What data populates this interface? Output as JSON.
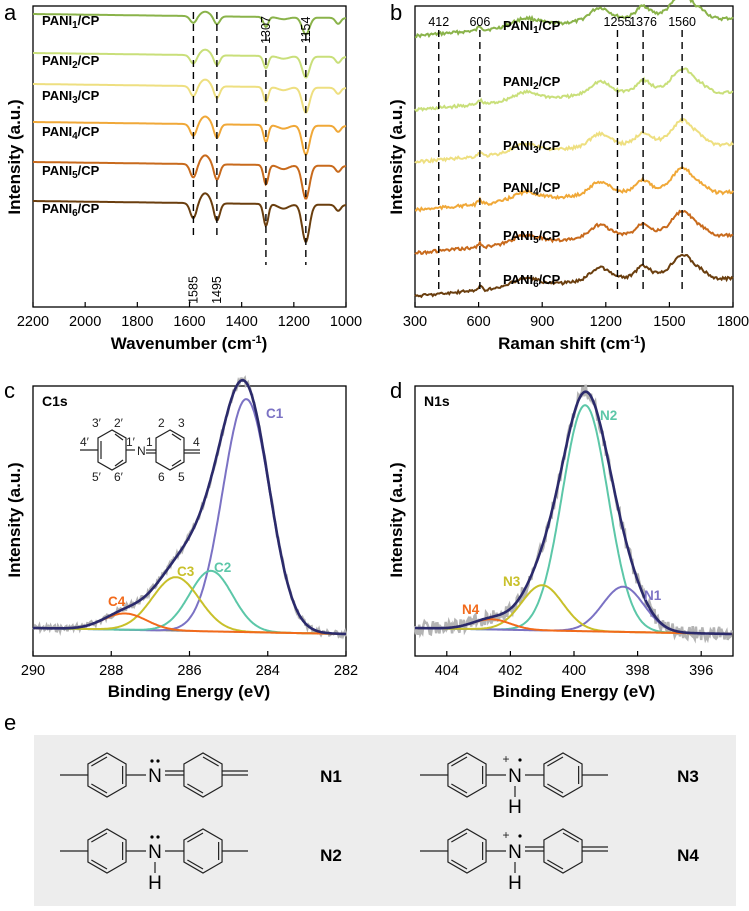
{
  "panels": {
    "a": "a",
    "b": "b",
    "c": "c",
    "d": "d",
    "e": "e"
  },
  "chart_data": [
    {
      "id": "a",
      "type": "line",
      "title": "",
      "xlabel": "Wavenumber (cm",
      "xlabel_sup": "-1",
      "xlabel_tail": ")",
      "ylabel": "Intensity (a.u.)",
      "xlim": [
        2200,
        1000
      ],
      "xticks": [
        "2200",
        "2000",
        "1800",
        "1600",
        "1400",
        "1200",
        "1000"
      ],
      "colors": [
        "#8ab34a",
        "#c9df7a",
        "#eedf80",
        "#f0a838",
        "#c86a1c",
        "#6a3e0e"
      ],
      "series": [
        {
          "name": "PANI1/CP",
          "base": "PANI",
          "sub": "1",
          "tail": "/CP",
          "offset": 0
        },
        {
          "name": "PANI2/CP",
          "base": "PANI",
          "sub": "2",
          "tail": "/CP",
          "offset": 1
        },
        {
          "name": "PANI3/CP",
          "base": "PANI",
          "sub": "3",
          "tail": "/CP",
          "offset": 2
        },
        {
          "name": "PANI4/CP",
          "base": "PANI",
          "sub": "4",
          "tail": "/CP",
          "offset": 3
        },
        {
          "name": "PANI5/CP",
          "base": "PANI",
          "sub": "5",
          "tail": "/CP",
          "offset": 4
        },
        {
          "name": "PANI6/CP",
          "base": "PANI",
          "sub": "6",
          "tail": "/CP",
          "offset": 5
        }
      ],
      "peaks": [
        {
          "x": 1585,
          "label": "1585",
          "pos": "bottom"
        },
        {
          "x": 1495,
          "label": "1495",
          "pos": "bottom"
        },
        {
          "x": 1307,
          "label": "1307",
          "pos": "top"
        },
        {
          "x": 1154,
          "label": "1154",
          "pos": "top"
        }
      ]
    },
    {
      "id": "b",
      "type": "line",
      "title": "",
      "xlabel": "Raman shift (cm",
      "xlabel_sup": "-1",
      "xlabel_tail": ")",
      "ylabel": "Intensity (a.u.)",
      "xlim": [
        300,
        1800
      ],
      "xticks": [
        "300",
        "600",
        "900",
        "1200",
        "1500",
        "1800"
      ],
      "colors": [
        "#8ab34a",
        "#c9df7a",
        "#eedf80",
        "#f0a838",
        "#c86a1c",
        "#6a3e0e"
      ],
      "series": [
        {
          "name": "PANI1/CP",
          "base": "PANI",
          "sub": "1",
          "tail": "/CP",
          "offset": 0
        },
        {
          "name": "PANI2/CP",
          "base": "PANI",
          "sub": "2",
          "tail": "/CP",
          "offset": 1
        },
        {
          "name": "PANI3/CP",
          "base": "PANI",
          "sub": "3",
          "tail": "/CP",
          "offset": 2
        },
        {
          "name": "PANI4/CP",
          "base": "PANI",
          "sub": "4",
          "tail": "/CP",
          "offset": 3
        },
        {
          "name": "PANI5/CP",
          "base": "PANI",
          "sub": "5",
          "tail": "/CP",
          "offset": 4
        },
        {
          "name": "PANI6/CP",
          "base": "PANI",
          "sub": "6",
          "tail": "/CP",
          "offset": 5
        }
      ],
      "peaks": [
        {
          "x": 412,
          "label": "412"
        },
        {
          "x": 606,
          "label": "606"
        },
        {
          "x": 1255,
          "label": "1255"
        },
        {
          "x": 1376,
          "label": "1376"
        },
        {
          "x": 1560,
          "label": "1560"
        }
      ]
    },
    {
      "id": "c",
      "type": "line",
      "title": "C1s",
      "xlabel": "Binding Energy (eV)",
      "ylabel": "Intensity (a.u.)",
      "xlim": [
        290,
        282
      ],
      "xticks": [
        "290",
        "288",
        "286",
        "284",
        "282"
      ],
      "components": [
        {
          "name": "C1",
          "center": 284.55,
          "amp": 1.0,
          "sigma": 0.6,
          "color": "#7b72c4"
        },
        {
          "name": "C2",
          "center": 285.45,
          "amp": 0.26,
          "sigma": 0.55,
          "color": "#5cc7a8"
        },
        {
          "name": "C3",
          "center": 286.35,
          "amp": 0.23,
          "sigma": 0.6,
          "color": "#c8c02a"
        },
        {
          "name": "C4",
          "center": 287.65,
          "amp": 0.07,
          "sigma": 0.55,
          "color": "#f26a1b"
        }
      ],
      "envelope_color": "#2b2a6b",
      "raw_color": "#b4b4b4",
      "background_color": "#777777"
    },
    {
      "id": "d",
      "type": "line",
      "title": "N1s",
      "xlabel": "Binding Energy (eV)",
      "ylabel": "Intensity (a.u.)",
      "xlim": [
        405,
        395
      ],
      "xticks": [
        "404",
        "402",
        "400",
        "398",
        "396"
      ],
      "components": [
        {
          "name": "N2",
          "center": 399.65,
          "amp": 1.0,
          "sigma": 0.72,
          "color": "#5cc7a8"
        },
        {
          "name": "N1",
          "center": 398.45,
          "amp": 0.2,
          "sigma": 0.65,
          "color": "#7b72c4"
        },
        {
          "name": "N3",
          "center": 401.0,
          "amp": 0.2,
          "sigma": 0.65,
          "color": "#c8c02a"
        },
        {
          "name": "N4",
          "center": 402.6,
          "amp": 0.045,
          "sigma": 0.6,
          "color": "#f26a1b"
        }
      ],
      "envelope_color": "#2b2a6b",
      "raw_color": "#b4b4b4",
      "background_color": "#777777"
    }
  ],
  "inset": {
    "labels": [
      "3′",
      "2′",
      "4′",
      "1′",
      "5′",
      "6′",
      "2",
      "3",
      "1",
      "4",
      "6",
      "5"
    ],
    "nitrogen": "N"
  },
  "structures": {
    "atom_n": "N",
    "atom_h": "H",
    "plus": "+",
    "labels": [
      "N1",
      "N2",
      "N3",
      "N4"
    ]
  }
}
